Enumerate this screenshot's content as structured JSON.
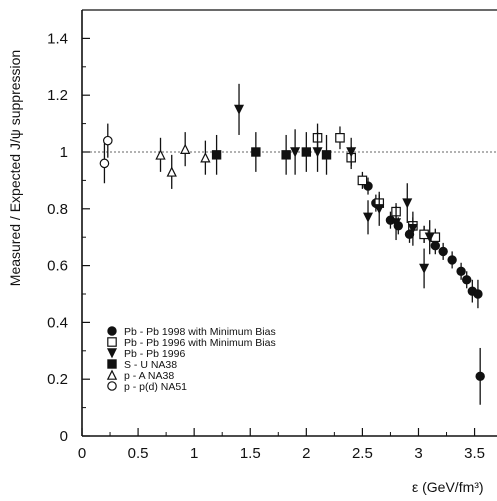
{
  "chart_data": {
    "type": "scatter",
    "title": "",
    "xlabel": "ε (GeV/fm³)",
    "ylabel": "Measured / Expected J/ψ suppression",
    "xlim": [
      0,
      3.7
    ],
    "ylim": [
      0,
      1.5
    ],
    "x_ticks": [
      "0",
      "0.5",
      "1",
      "1.5",
      "2",
      "2.5",
      "3",
      "3.5"
    ],
    "y_ticks": [
      "0",
      "0.2",
      "0.4",
      "0.6",
      "0.8",
      "1",
      "1.2",
      "1.4"
    ],
    "reference_line": 1,
    "legend_position": "bottom-left",
    "series": [
      {
        "name": "Pb - Pb 1998 with Minimum Bias",
        "marker": "circle-filled",
        "points": [
          {
            "x": 2.55,
            "y": 0.88,
            "err": 0.03
          },
          {
            "x": 2.62,
            "y": 0.82,
            "err": 0.03
          },
          {
            "x": 2.75,
            "y": 0.76,
            "err": 0.03
          },
          {
            "x": 2.82,
            "y": 0.74,
            "err": 0.03
          },
          {
            "x": 2.92,
            "y": 0.71,
            "err": 0.03
          },
          {
            "x": 3.05,
            "y": 0.71,
            "err": 0.03
          },
          {
            "x": 3.15,
            "y": 0.67,
            "err": 0.03
          },
          {
            "x": 3.22,
            "y": 0.65,
            "err": 0.03
          },
          {
            "x": 3.3,
            "y": 0.62,
            "err": 0.03
          },
          {
            "x": 3.38,
            "y": 0.58,
            "err": 0.03
          },
          {
            "x": 3.43,
            "y": 0.55,
            "err": 0.03
          },
          {
            "x": 3.48,
            "y": 0.51,
            "err": 0.04
          },
          {
            "x": 3.53,
            "y": 0.5,
            "err": 0.05
          },
          {
            "x": 3.55,
            "y": 0.21,
            "err": 0.1
          }
        ]
      },
      {
        "name": "Pb - Pb 1996 with Minimum Bias",
        "marker": "square-open",
        "points": [
          {
            "x": 2.1,
            "y": 1.05,
            "err": 0.05
          },
          {
            "x": 2.3,
            "y": 1.05,
            "err": 0.04
          },
          {
            "x": 2.4,
            "y": 0.98,
            "err": 0.04
          },
          {
            "x": 2.5,
            "y": 0.9,
            "err": 0.03
          },
          {
            "x": 2.65,
            "y": 0.82,
            "err": 0.03
          },
          {
            "x": 2.8,
            "y": 0.79,
            "err": 0.03
          },
          {
            "x": 2.95,
            "y": 0.74,
            "err": 0.03
          },
          {
            "x": 3.05,
            "y": 0.71,
            "err": 0.03
          },
          {
            "x": 3.15,
            "y": 0.7,
            "err": 0.03
          }
        ]
      },
      {
        "name": "Pb - Pb 1996",
        "marker": "triangle-down-filled",
        "points": [
          {
            "x": 1.4,
            "y": 1.15,
            "err": 0.09
          },
          {
            "x": 1.9,
            "y": 1.0,
            "err": 0.08
          },
          {
            "x": 2.1,
            "y": 1.0,
            "err": 0.07
          },
          {
            "x": 2.4,
            "y": 1.0,
            "err": 0.05
          },
          {
            "x": 2.55,
            "y": 0.77,
            "err": 0.06
          },
          {
            "x": 2.65,
            "y": 0.8,
            "err": 0.06
          },
          {
            "x": 2.8,
            "y": 0.75,
            "err": 0.06
          },
          {
            "x": 2.9,
            "y": 0.82,
            "err": 0.07
          },
          {
            "x": 2.95,
            "y": 0.73,
            "err": 0.06
          },
          {
            "x": 3.05,
            "y": 0.59,
            "err": 0.07
          },
          {
            "x": 3.1,
            "y": 0.7,
            "err": 0.06
          }
        ]
      },
      {
        "name": "S - U      NA38",
        "marker": "square-filled",
        "points": [
          {
            "x": 1.2,
            "y": 0.99,
            "err": 0.07
          },
          {
            "x": 1.55,
            "y": 1.0,
            "err": 0.07
          },
          {
            "x": 1.82,
            "y": 0.99,
            "err": 0.07
          },
          {
            "x": 2.0,
            "y": 1.0,
            "err": 0.07
          },
          {
            "x": 2.18,
            "y": 0.99,
            "err": 0.07
          }
        ]
      },
      {
        "name": "p - A      NA38",
        "marker": "triangle-up-open",
        "points": [
          {
            "x": 0.7,
            "y": 0.99,
            "err": 0.06
          },
          {
            "x": 0.8,
            "y": 0.93,
            "err": 0.06
          },
          {
            "x": 0.92,
            "y": 1.01,
            "err": 0.06
          },
          {
            "x": 1.1,
            "y": 0.98,
            "err": 0.06
          }
        ]
      },
      {
        "name": "p - p(d)  NA51",
        "marker": "circle-open",
        "points": [
          {
            "x": 0.2,
            "y": 0.96,
            "err": 0.07
          },
          {
            "x": 0.23,
            "y": 1.04,
            "err": 0.06
          }
        ]
      }
    ]
  }
}
